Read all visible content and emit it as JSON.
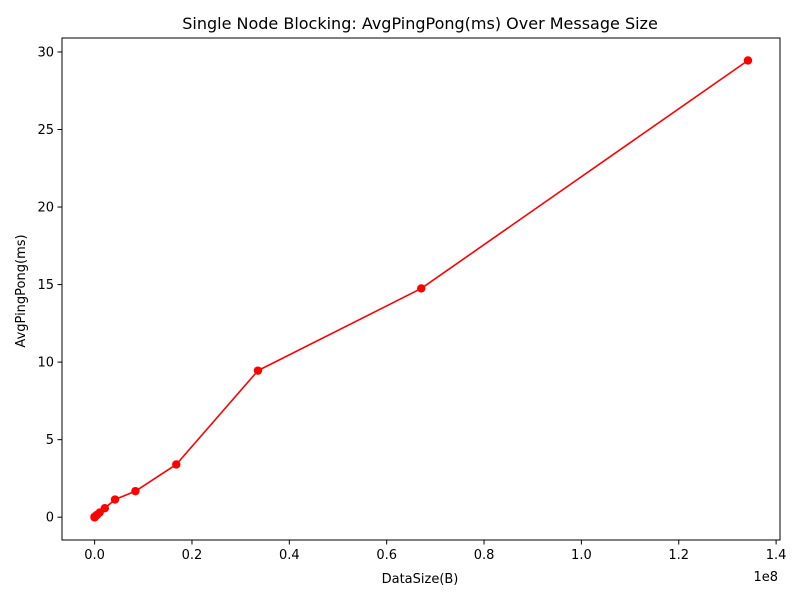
{
  "chart_data": {
    "type": "line",
    "title": "Single Node Blocking: AvgPingPong(ms) Over Message Size",
    "xlabel": "DataSize(B)",
    "ylabel": "AvgPingPong(ms)",
    "x_offset_label": "1e8",
    "xlim": [
      -6700000,
      140800000
    ],
    "ylim": [
      -1.47,
      30.9
    ],
    "xticks": [
      0,
      20000000,
      40000000,
      60000000,
      80000000,
      100000000,
      120000000,
      140000000
    ],
    "xtick_labels": [
      "0.0",
      "0.2",
      "0.4",
      "0.6",
      "0.8",
      "1.0",
      "1.2",
      "1.4"
    ],
    "yticks": [
      0,
      5,
      10,
      15,
      20,
      25,
      30
    ],
    "ytick_labels": [
      "0",
      "5",
      "10",
      "15",
      "20",
      "25",
      "30"
    ],
    "grid": false,
    "legend": "none",
    "series": [
      {
        "color": "#ff0000",
        "marker": "circle",
        "x": [
          1,
          2,
          4,
          8,
          16,
          32,
          64,
          128,
          256,
          512,
          1024,
          2048,
          4096,
          8192,
          16384,
          32768,
          65536,
          131072,
          262144,
          524288,
          1048576,
          2097152,
          4194304,
          8388608,
          16777216,
          33554432,
          67108864,
          134217728
        ],
        "y": [
          0.001,
          0.001,
          0.001,
          0.001,
          0.001,
          0.001,
          0.001,
          0.002,
          0.002,
          0.003,
          0.004,
          0.005,
          0.007,
          0.01,
          0.015,
          0.02,
          0.03,
          0.05,
          0.09,
          0.16,
          0.3,
          0.58,
          1.14,
          1.68,
          3.4,
          9.45,
          14.75,
          29.45
        ]
      }
    ]
  }
}
